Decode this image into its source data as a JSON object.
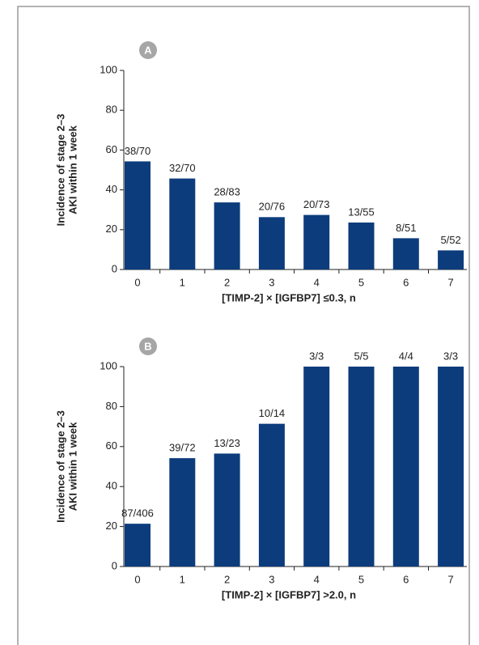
{
  "chart_data": [
    {
      "type": "bar",
      "panel": "A",
      "color": "#0c3c7c",
      "categories": [
        "0",
        "1",
        "2",
        "3",
        "4",
        "5",
        "6",
        "7"
      ],
      "values": [
        54.3,
        45.7,
        33.7,
        26.3,
        27.4,
        23.6,
        15.7,
        9.6
      ],
      "value_labels": [
        "38/70",
        "32/70",
        "28/83",
        "20/76",
        "20/73",
        "13/55",
        "8/51",
        "5/52"
      ],
      "xlabel": "[TIMP-2] × [IGFBP7] ≤0.3, n",
      "ylabel": [
        "Incidence of stage 2–3",
        "AKI within 1 week"
      ],
      "ylim": [
        0,
        100
      ],
      "yticks": [
        0,
        20,
        40,
        60,
        80,
        100
      ],
      "grid": false
    },
    {
      "type": "bar",
      "panel": "B",
      "color": "#0c3c7c",
      "categories": [
        "0",
        "1",
        "2",
        "3",
        "4",
        "5",
        "6",
        "7"
      ],
      "values": [
        21.4,
        54.2,
        56.5,
        71.4,
        100,
        100,
        100,
        100
      ],
      "value_labels": [
        "87/406",
        "39/72",
        "13/23",
        "10/14",
        "3/3",
        "5/5",
        "4/4",
        "3/3"
      ],
      "xlabel": "[TIMP-2] × [IGFBP7] >2.0, n",
      "ylabel": [
        "Incidence of stage 2–3",
        "AKI within 1 week"
      ],
      "ylim": [
        0,
        100
      ],
      "yticks": [
        0,
        20,
        40,
        60,
        80,
        100
      ],
      "grid": false
    }
  ]
}
